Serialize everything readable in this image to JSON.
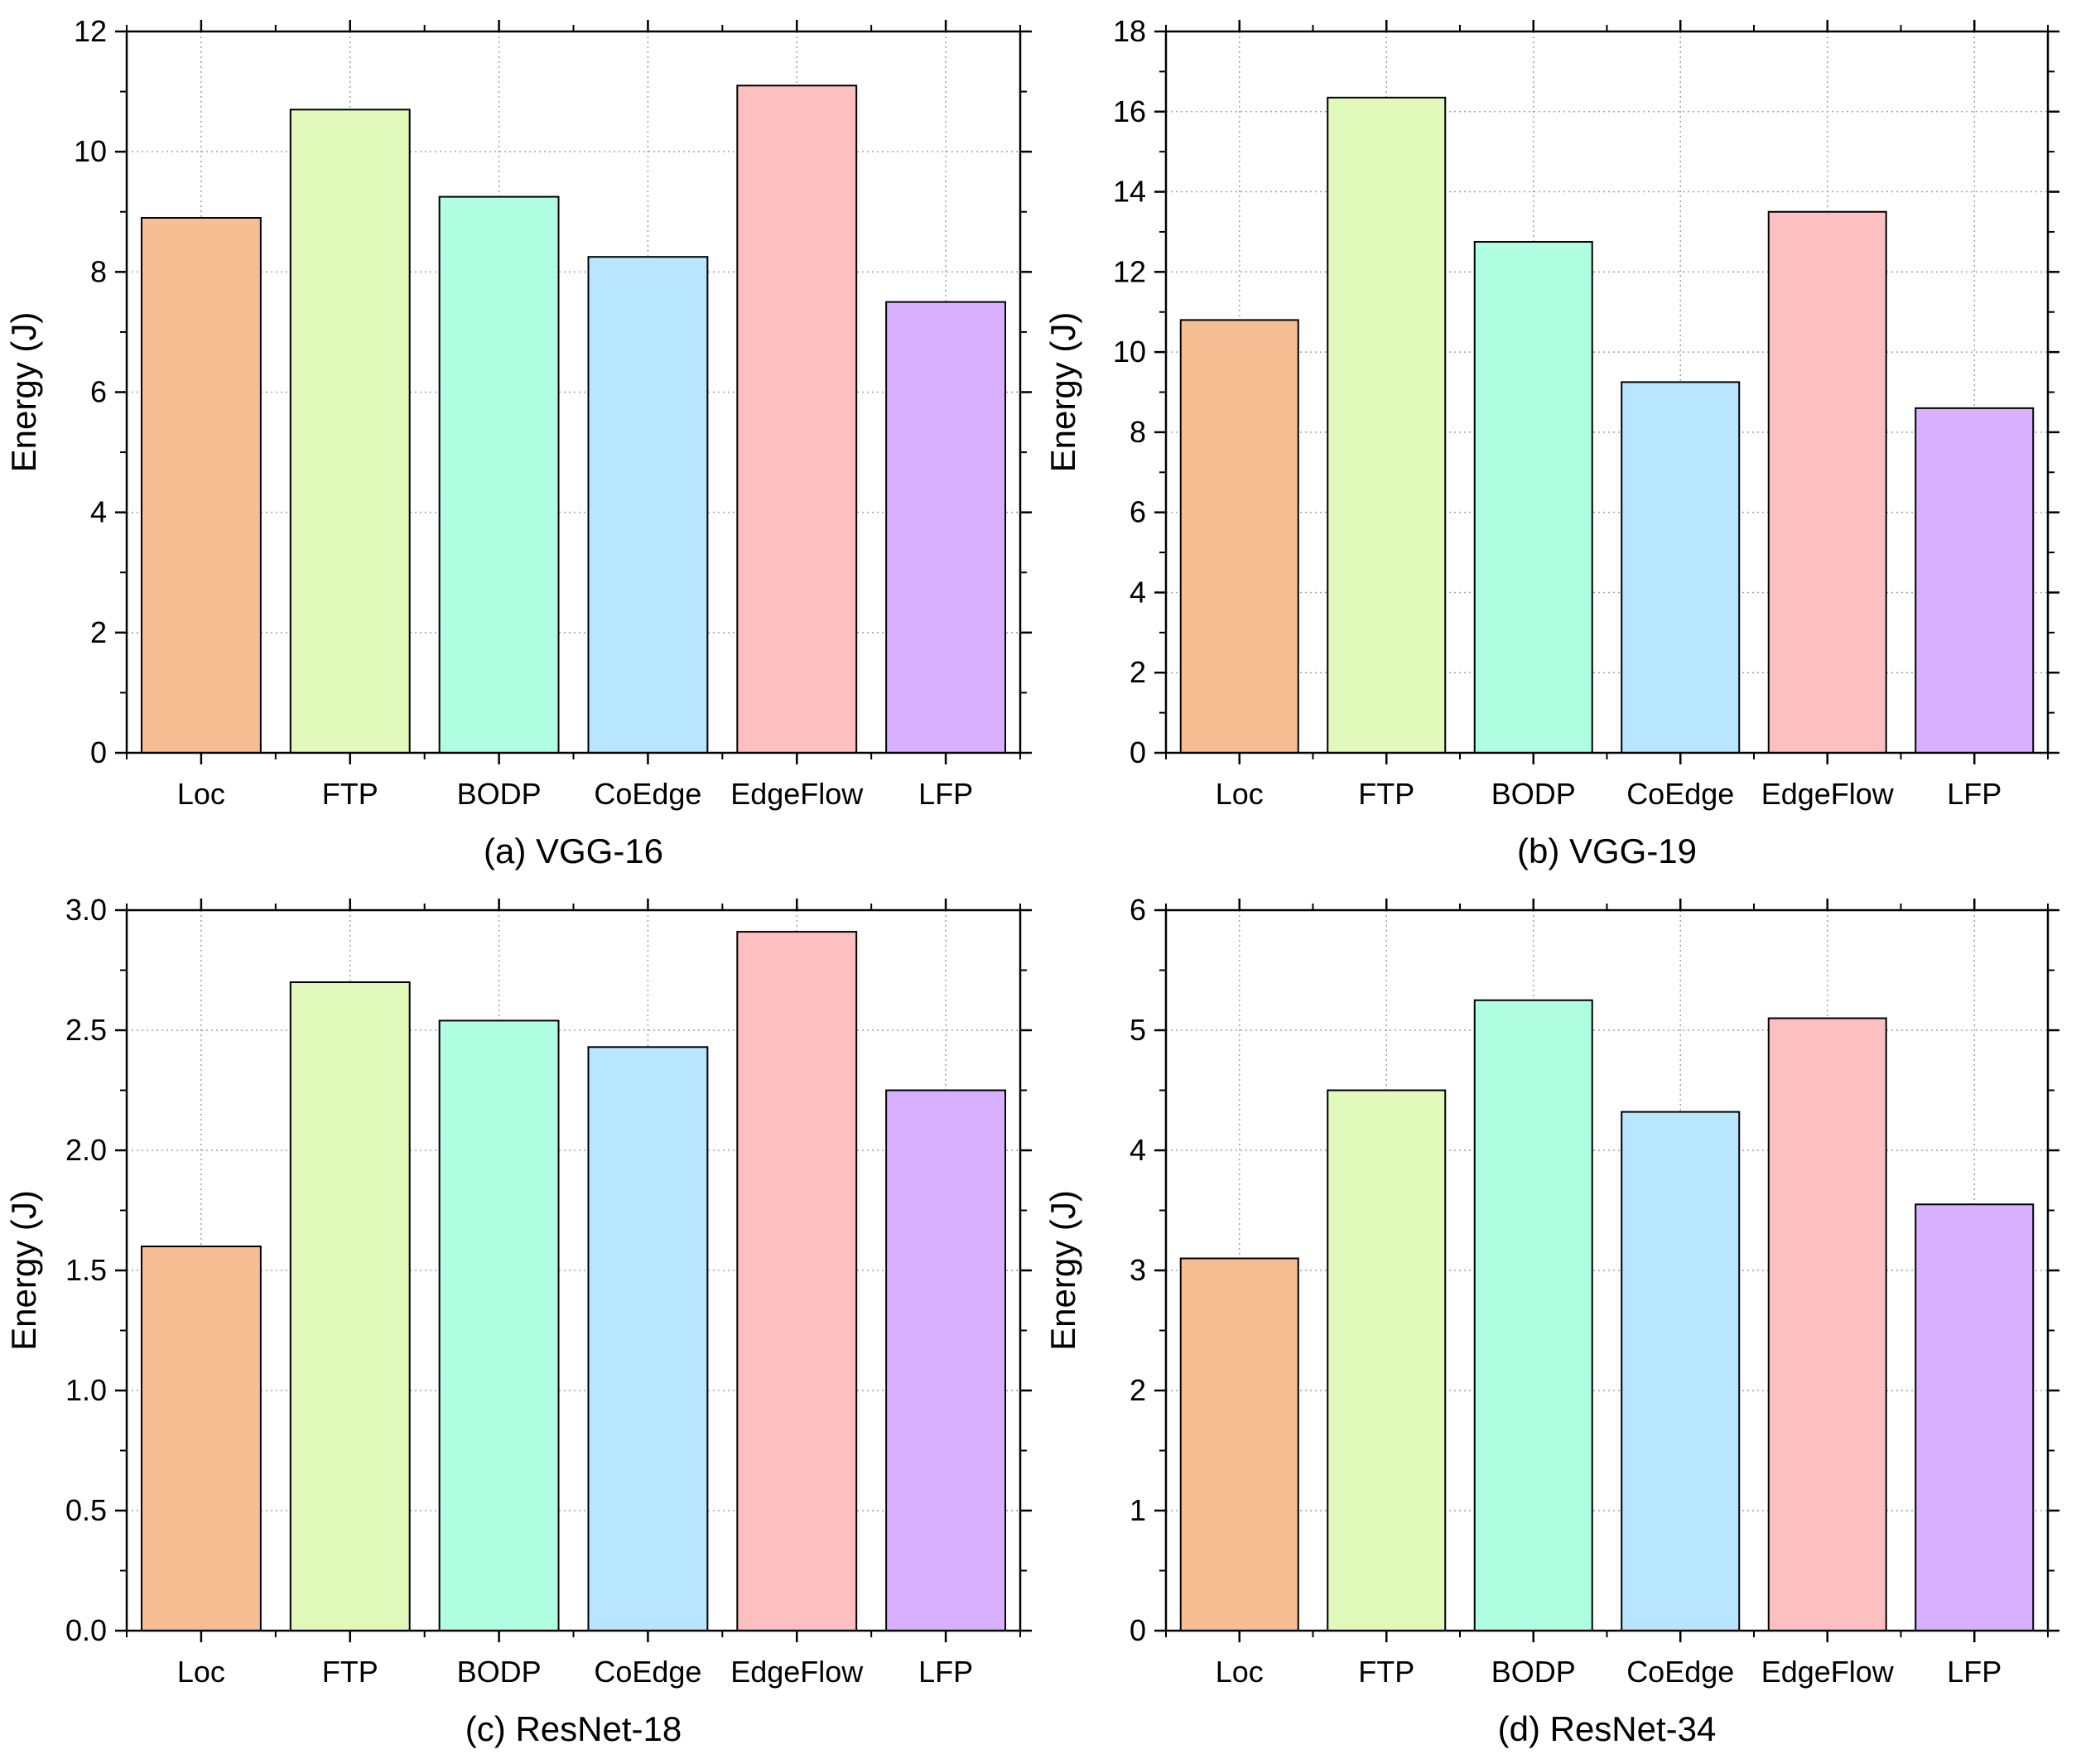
{
  "chart_data": [
    {
      "type": "bar",
      "caption": "(a) VGG-16",
      "ylabel": "Energy (J)",
      "ylim": [
        0,
        12
      ],
      "yticks": [
        "0",
        "2",
        "4",
        "6",
        "8",
        "10",
        "12"
      ],
      "categories": [
        "Loc",
        "FTP",
        "BODP",
        "CoEdge",
        "EdgeFlow",
        "LFP"
      ],
      "values": [
        8.9,
        10.7,
        9.25,
        8.25,
        11.1,
        7.5
      ],
      "grid": true,
      "legend": "none"
    },
    {
      "type": "bar",
      "caption": "(b) VGG-19",
      "ylabel": "Energy (J)",
      "ylim": [
        0,
        18
      ],
      "yticks": [
        "0",
        "2",
        "4",
        "6",
        "8",
        "10",
        "12",
        "14",
        "16",
        "18"
      ],
      "categories": [
        "Loc",
        "FTP",
        "BODP",
        "CoEdge",
        "EdgeFlow",
        "LFP"
      ],
      "values": [
        10.8,
        16.35,
        12.75,
        9.25,
        13.5,
        8.6
      ],
      "grid": true,
      "legend": "none"
    },
    {
      "type": "bar",
      "caption": "(c) ResNet-18",
      "ylabel": "Energy (J)",
      "ylim": [
        0,
        3.0
      ],
      "yticks": [
        "0.0",
        "0.5",
        "1.0",
        "1.5",
        "2.0",
        "2.5",
        "3.0"
      ],
      "categories": [
        "Loc",
        "FTP",
        "BODP",
        "CoEdge",
        "EdgeFlow",
        "LFP"
      ],
      "values": [
        1.6,
        2.7,
        2.54,
        2.43,
        2.91,
        2.25
      ],
      "grid": true,
      "legend": "none"
    },
    {
      "type": "bar",
      "caption": "(d) ResNet-34",
      "ylabel": "Energy (J)",
      "ylim": [
        0,
        6
      ],
      "yticks": [
        "0",
        "1",
        "2",
        "3",
        "4",
        "5",
        "6"
      ],
      "categories": [
        "Loc",
        "FTP",
        "BODP",
        "CoEdge",
        "EdgeFlow",
        "LFP"
      ],
      "values": [
        3.1,
        4.5,
        5.25,
        4.32,
        5.1,
        3.55
      ],
      "grid": true,
      "legend": "none"
    }
  ],
  "colors": {
    "bars": [
      "#f7be94",
      "#e2f9bc",
      "#b0ffe3",
      "#b8e5ff",
      "#fdbfc0",
      "#d9b0ff"
    ],
    "axis": "#000000",
    "grid": "#a0a0a0"
  }
}
